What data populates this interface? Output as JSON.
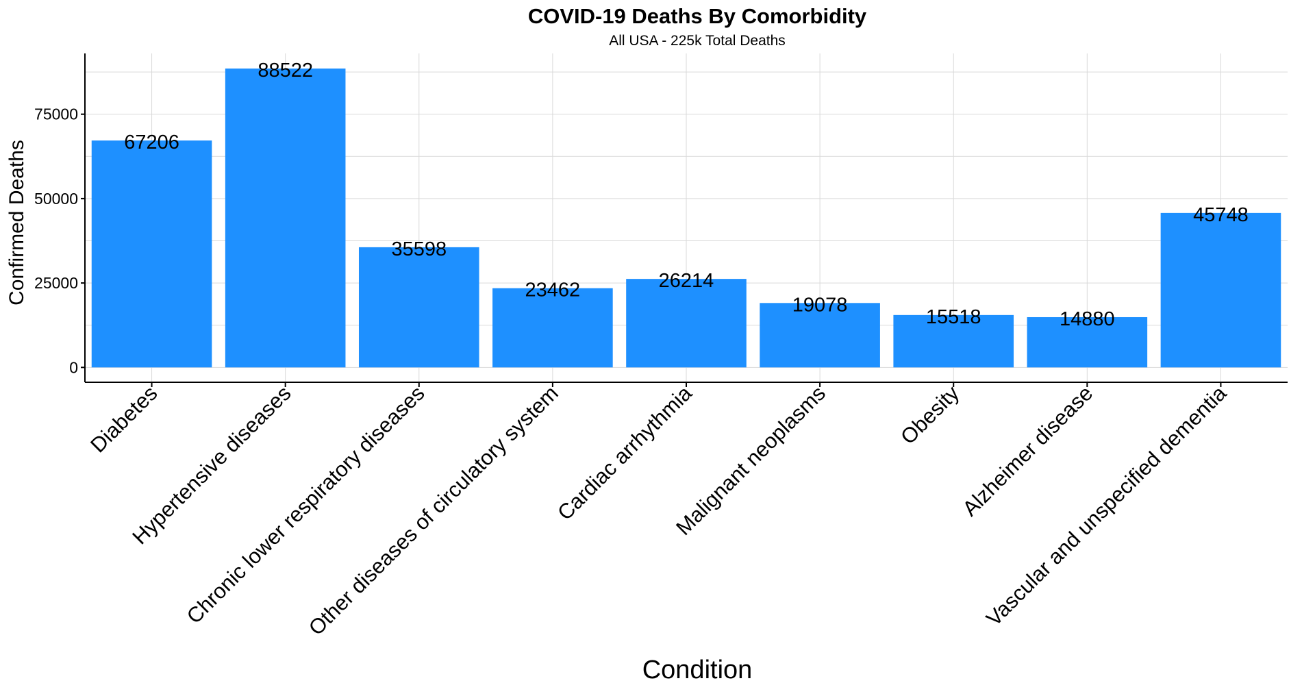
{
  "chart_data": {
    "type": "bar",
    "title": "COVID-19 Deaths By Comorbidity",
    "subtitle": "All USA - 225k Total Deaths",
    "xlabel": "Condition",
    "ylabel": "Confirmed Deaths",
    "categories": [
      "Diabetes",
      "Hypertensive diseases",
      "Chronic lower respiratory diseases",
      "Other diseases of circulatory system",
      "Cardiac arrhythmia",
      "Malignant neoplasms",
      "Obesity",
      "Alzheimer disease",
      "Vascular and unspecified dementia"
    ],
    "values": [
      67206,
      88522,
      35598,
      23462,
      26214,
      19078,
      15518,
      14880,
      45748
    ],
    "data_labels": [
      "67206",
      "88522",
      "35598",
      "23462",
      "26214",
      "19078",
      "15518",
      "14880",
      "45748"
    ],
    "yticks": [
      0,
      25000,
      50000,
      75000
    ],
    "ytick_labels": [
      "0",
      "25000",
      "50000",
      "75000"
    ],
    "ylim": [
      -4400,
      93000
    ],
    "grid": true,
    "bar_color": "#1E90FF"
  }
}
